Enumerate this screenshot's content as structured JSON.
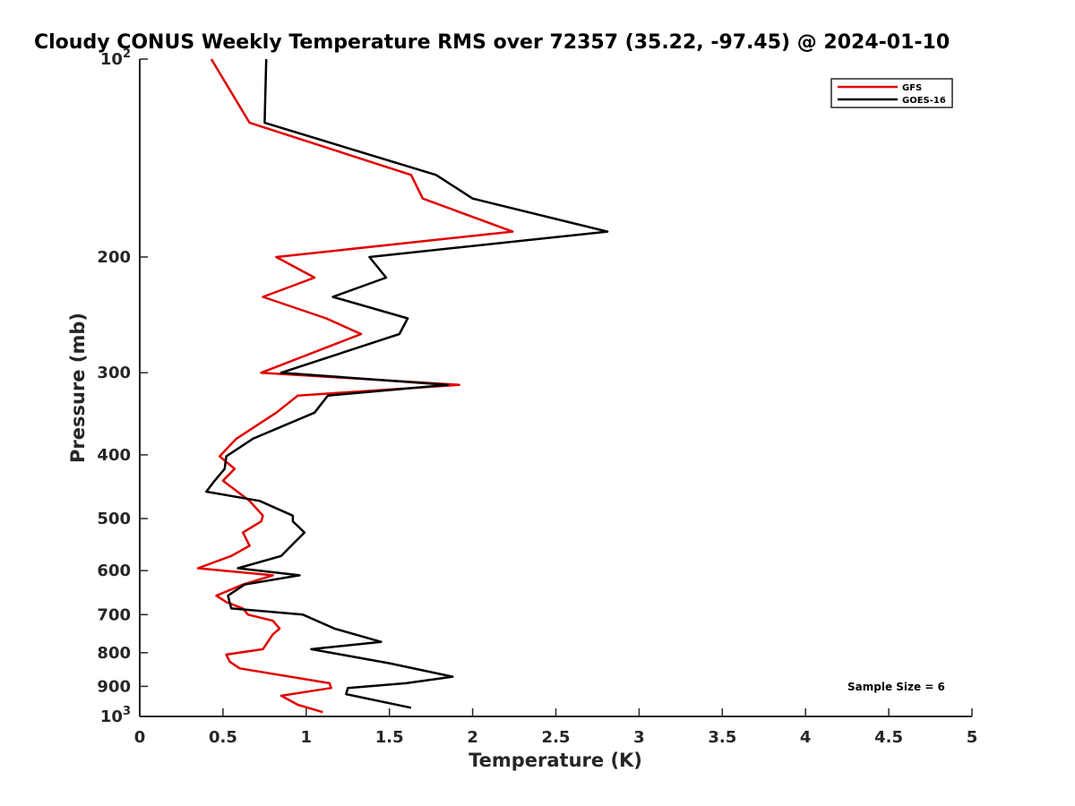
{
  "chart_data": {
    "type": "line",
    "title": "Cloudy CONUS Weekly Temperature RMS over 72357 (35.22, -97.45) @ 2024-01-10",
    "xlabel": "Temperature (K)",
    "ylabel": "Pressure (mb)",
    "xlim": [
      0,
      5
    ],
    "ylim": [
      1000,
      100
    ],
    "yscale": "log",
    "x_ticks": [
      "0",
      "0.5",
      "1",
      "1.5",
      "2",
      "2.5",
      "3",
      "3.5",
      "4",
      "4.5",
      "5"
    ],
    "y_ticks": [
      {
        "value": 100,
        "base": "10",
        "exp": "2"
      },
      {
        "value": 200,
        "base": "200",
        "exp": ""
      },
      {
        "value": 300,
        "base": "300",
        "exp": ""
      },
      {
        "value": 400,
        "base": "400",
        "exp": ""
      },
      {
        "value": 500,
        "base": "500",
        "exp": ""
      },
      {
        "value": 600,
        "base": "600",
        "exp": ""
      },
      {
        "value": 700,
        "base": "700",
        "exp": ""
      },
      {
        "value": 800,
        "base": "800",
        "exp": ""
      },
      {
        "value": 900,
        "base": "900",
        "exp": ""
      },
      {
        "value": 1000,
        "base": "10",
        "exp": "3"
      }
    ],
    "legend_position": "top-right",
    "annotation": "Sample Size = 6",
    "grid": false,
    "series": [
      {
        "name": "GFS",
        "color": "#e00000",
        "points": [
          [
            0.43,
            100
          ],
          [
            0.66,
            125
          ],
          [
            1.63,
            150
          ],
          [
            1.7,
            163
          ],
          [
            2.24,
            183
          ],
          [
            0.82,
            200
          ],
          [
            1.05,
            215
          ],
          [
            0.74,
            230
          ],
          [
            1.12,
            248
          ],
          [
            1.33,
            262
          ],
          [
            0.73,
            300
          ],
          [
            1.92,
            313
          ],
          [
            0.95,
            325
          ],
          [
            0.82,
            345
          ],
          [
            0.58,
            378
          ],
          [
            0.48,
            402
          ],
          [
            0.57,
            420
          ],
          [
            0.5,
            438
          ],
          [
            0.66,
            470
          ],
          [
            0.74,
            495
          ],
          [
            0.73,
            505
          ],
          [
            0.62,
            525
          ],
          [
            0.66,
            550
          ],
          [
            0.55,
            570
          ],
          [
            0.35,
            595
          ],
          [
            0.8,
            610
          ],
          [
            0.62,
            630
          ],
          [
            0.46,
            655
          ],
          [
            0.52,
            670
          ],
          [
            0.62,
            685
          ],
          [
            0.65,
            700
          ],
          [
            0.8,
            715
          ],
          [
            0.84,
            735
          ],
          [
            0.8,
            750
          ],
          [
            0.74,
            790
          ],
          [
            0.52,
            805
          ],
          [
            0.54,
            825
          ],
          [
            0.6,
            845
          ],
          [
            1.14,
            890
          ],
          [
            1.15,
            905
          ],
          [
            0.85,
            930
          ],
          [
            0.95,
            960
          ],
          [
            1.1,
            985
          ]
        ]
      },
      {
        "name": "GOES-16",
        "color": "#000000",
        "points": [
          [
            0.76,
            100
          ],
          [
            0.75,
            125
          ],
          [
            1.78,
            150
          ],
          [
            2.0,
            163
          ],
          [
            2.81,
            183
          ],
          [
            1.38,
            200
          ],
          [
            1.48,
            215
          ],
          [
            1.16,
            230
          ],
          [
            1.61,
            248
          ],
          [
            1.56,
            262
          ],
          [
            0.85,
            300
          ],
          [
            1.85,
            313
          ],
          [
            1.13,
            325
          ],
          [
            1.05,
            345
          ],
          [
            0.68,
            378
          ],
          [
            0.52,
            402
          ],
          [
            0.51,
            420
          ],
          [
            0.45,
            438
          ],
          [
            0.4,
            455
          ],
          [
            0.72,
            470
          ],
          [
            0.92,
            495
          ],
          [
            0.92,
            505
          ],
          [
            0.99,
            525
          ],
          [
            0.91,
            550
          ],
          [
            0.85,
            570
          ],
          [
            0.59,
            595
          ],
          [
            0.96,
            610
          ],
          [
            0.63,
            630
          ],
          [
            0.53,
            655
          ],
          [
            0.54,
            670
          ],
          [
            0.55,
            685
          ],
          [
            0.98,
            700
          ],
          [
            1.17,
            735
          ],
          [
            1.45,
            770
          ],
          [
            1.03,
            790
          ],
          [
            1.5,
            830
          ],
          [
            1.88,
            870
          ],
          [
            1.6,
            890
          ],
          [
            1.25,
            905
          ],
          [
            1.24,
            925
          ],
          [
            1.63,
            970
          ]
        ]
      }
    ]
  }
}
